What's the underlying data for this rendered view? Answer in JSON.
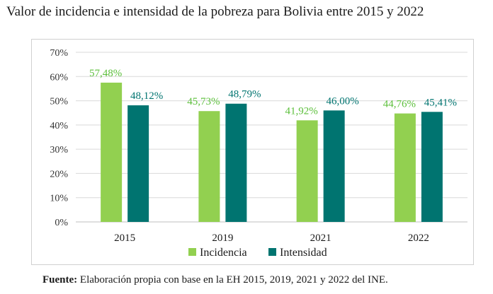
{
  "title": "Valor de incidencia e intensidad de la pobreza para Bolivia entre 2015 y 2022",
  "source": {
    "label": "Fuente:",
    "text": "Elaboración propia con base en la EH 2015, 2019, 2021 y 2022 del INE."
  },
  "chart_data": {
    "type": "bar",
    "categories": [
      "2015",
      "2019",
      "2021",
      "2022"
    ],
    "series": [
      {
        "name": "Incidencia",
        "color": "#92d050",
        "label_color": "#5bbf3a",
        "values": [
          57.48,
          45.73,
          41.92,
          44.76
        ],
        "labels": [
          "57,48%",
          "45,73%",
          "41,92%",
          "44,76%"
        ]
      },
      {
        "name": "Intensidad",
        "color": "#007470",
        "label_color": "#007470",
        "values": [
          48.12,
          48.79,
          46.0,
          45.41
        ],
        "labels": [
          "48,12%",
          "48,79%",
          "46,00%",
          "45,41%"
        ]
      }
    ],
    "ylim": [
      0,
      70
    ],
    "yticks": [
      0,
      10,
      20,
      30,
      40,
      50,
      60,
      70
    ],
    "ytick_labels": [
      "0%",
      "10%",
      "20%",
      "30%",
      "40%",
      "50%",
      "60%",
      "70%"
    ],
    "grid": true,
    "legend": "bottom",
    "xlabel": "",
    "ylabel": ""
  }
}
